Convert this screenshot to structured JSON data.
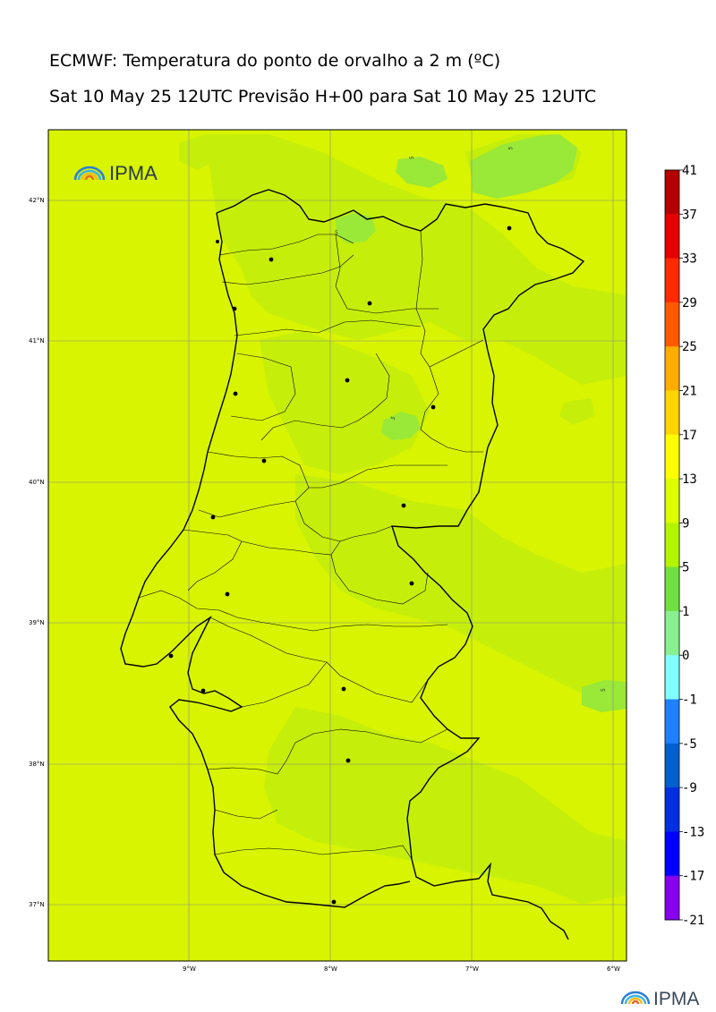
{
  "title_line1": "ECMWF: Temperatura do ponto de orvalho a 2 m (ºC)",
  "title_line2": "Sat 10 May 25 12UTC Previsão H+00 para Sat 10 May 25 12UTC",
  "logo_text": "IPMA",
  "footer_logo_text": "IPMA",
  "latitude_labels": [
    "42°N",
    "41°N",
    "40°N",
    "39°N",
    "38°N",
    "37°N"
  ],
  "longitude_labels": [
    "9°W",
    "8°W",
    "7°W",
    "6°W"
  ],
  "colorbar": {
    "labels": [
      "41",
      "37",
      "33",
      "29",
      "25",
      "21",
      "17",
      "13",
      "9",
      "5",
      "1",
      "0",
      "-1",
      "-5",
      "-9",
      "-13",
      "-17",
      "-21"
    ],
    "colors": [
      "#b40000",
      "#e60000",
      "#ff2a00",
      "#ff5a00",
      "#ff8a00",
      "#ffad00",
      "#ffd400",
      "#ffff00",
      "#ddff00",
      "#b3f400",
      "#70e040",
      "#88f090",
      "#80ffff",
      "#7fa9ff",
      "#2080ff",
      "#0060d0",
      "#0030e0",
      "#0000ff",
      "#8800ee"
    ]
  },
  "contour_labels": [
    "5",
    "5",
    "5",
    "5",
    "5"
  ],
  "colors": {
    "background_field": "#d8f400",
    "moist_patch": "#c4ee0c",
    "low_dewpoint_patch": "#9ae838",
    "coast": "#000000",
    "grid": "#8a8a8a"
  },
  "city_markers_count": 18
}
